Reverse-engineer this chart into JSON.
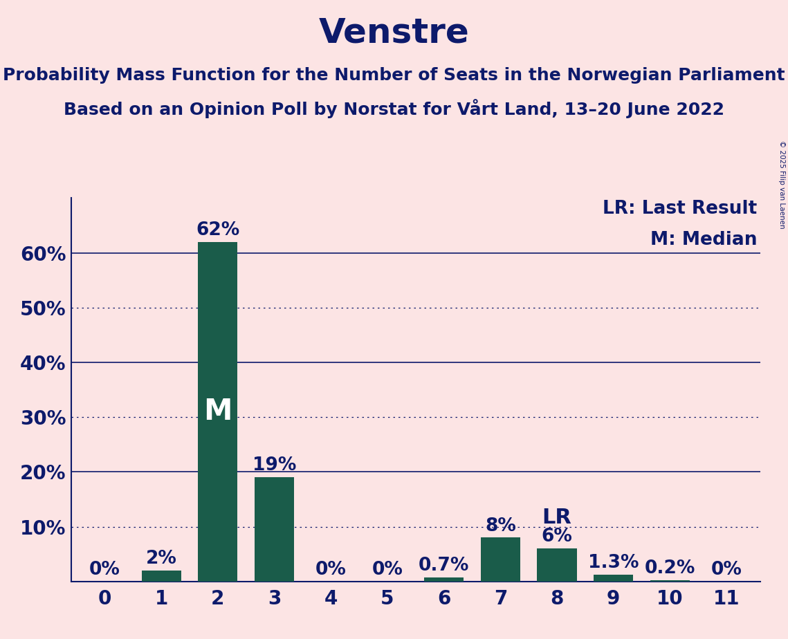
{
  "title": "Venstre",
  "subtitle1": "Probability Mass Function for the Number of Seats in the Norwegian Parliament",
  "subtitle2": "Based on an Opinion Poll by Norstat for Vårt Land, 13–20 June 2022",
  "copyright": "© 2025 Filip van Laenen",
  "categories": [
    0,
    1,
    2,
    3,
    4,
    5,
    6,
    7,
    8,
    9,
    10,
    11
  ],
  "values": [
    0.0,
    2.0,
    62.0,
    19.0,
    0.0,
    0.0,
    0.7,
    8.0,
    6.0,
    1.3,
    0.2,
    0.0
  ],
  "bar_color": "#1a5c4a",
  "bar_labels": [
    "0%",
    "2%",
    "62%",
    "19%",
    "0%",
    "0%",
    "0.7%",
    "8%",
    "6%",
    "1.3%",
    "0.2%",
    "0%"
  ],
  "median_bar": 2,
  "lr_bar": 8,
  "background_color": "#fce4e4",
  "text_color": "#0d1a6b",
  "ylim": [
    0,
    70
  ],
  "solid_gridlines": [
    20,
    40,
    60
  ],
  "dotted_gridlines": [
    10,
    30,
    50
  ],
  "ytick_vals": [
    10,
    20,
    30,
    40,
    50,
    60
  ],
  "ytick_labels": [
    "10%",
    "20%",
    "30%",
    "40%",
    "50%",
    "60%"
  ],
  "grid_color": "#0d1a6b",
  "legend_lr": "LR: Last Result",
  "legend_m": "M: Median",
  "title_fontsize": 36,
  "subtitle_fontsize": 18,
  "tick_fontsize": 20,
  "legend_fontsize": 19,
  "bar_label_fontsize": 19,
  "median_label": "M",
  "lr_label": "LR",
  "median_label_fontsize": 30,
  "lr_label_fontsize": 22
}
